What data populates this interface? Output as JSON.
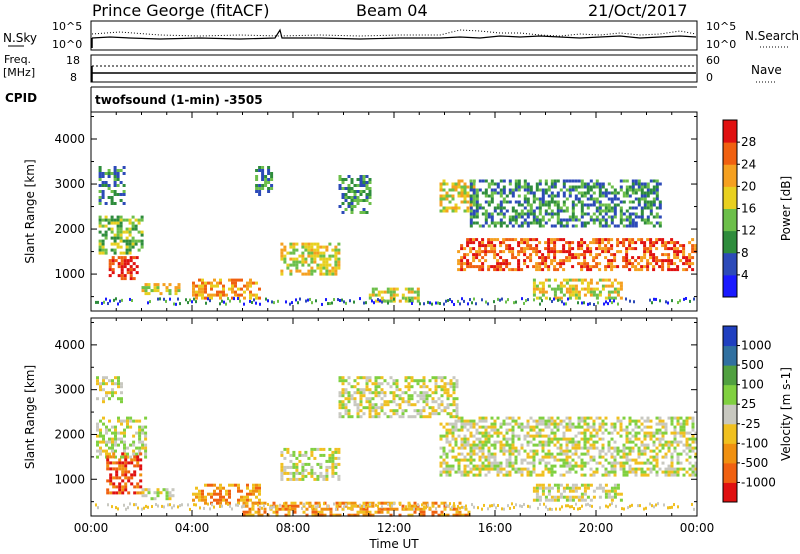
{
  "header": {
    "station": "Prince George (fitACF)",
    "beam": "Beam 04",
    "date": "21/Oct/2017"
  },
  "top_panels": {
    "nsky_label": "N.Sky",
    "nsky_ticks": [
      "10^5",
      "10^0"
    ],
    "nsearch_label": "N.Search",
    "nsearch_ticks": [
      "10^5",
      "10^0"
    ],
    "freq_label_1": "Freq.",
    "freq_label_2": "[MHz]",
    "freq_ticks": [
      "18",
      "8"
    ],
    "nave_label": "Nave",
    "nave_ticks": [
      "60",
      "0"
    ],
    "cpid_label": "CPID",
    "cpid_text": "twofsound (1-min) -3505"
  },
  "chart_data": [
    {
      "type": "heatmap",
      "title": "",
      "xlabel": "Time UT",
      "ylabel": "Slant Range [km]",
      "x_tick_labels": [
        "00:00",
        "04:00",
        "08:00",
        "12:00",
        "16:00",
        "20:00",
        "00:00"
      ],
      "y_tick_labels": [
        "1000",
        "2000",
        "3000",
        "4000"
      ],
      "xlim_hours": [
        0,
        24
      ],
      "ylim_km": [
        180,
        4600
      ],
      "colorbar_label": "Power [dB]",
      "colorbar_ticks": [
        "4",
        "8",
        "12",
        "16",
        "20",
        "24",
        "28"
      ],
      "colorbar_colors": [
        "#1a1aff",
        "#2c4ab8",
        "#2e8c3c",
        "#6cbf4a",
        "#e8d020",
        "#f5a020",
        "#f06010",
        "#e01010"
      ],
      "regions": [
        {
          "t0": 0.3,
          "t1": 2.0,
          "r0": 1500,
          "r1": 2300,
          "level": 3
        },
        {
          "t0": 0.7,
          "t1": 1.8,
          "r0": 900,
          "r1": 1400,
          "level": 7
        },
        {
          "t0": 0.3,
          "t1": 1.3,
          "r0": 2600,
          "r1": 3400,
          "level": 2
        },
        {
          "t0": 2.0,
          "t1": 3.5,
          "r0": 600,
          "r1": 800,
          "level": 4
        },
        {
          "t0": 4.0,
          "t1": 6.7,
          "r0": 500,
          "r1": 900,
          "level": 5
        },
        {
          "t0": 6.5,
          "t1": 7.2,
          "r0": 2800,
          "r1": 3400,
          "level": 2
        },
        {
          "t0": 7.5,
          "t1": 9.8,
          "r0": 1000,
          "r1": 1700,
          "level": 4
        },
        {
          "t0": 9.8,
          "t1": 11.0,
          "r0": 2400,
          "r1": 3200,
          "level": 2
        },
        {
          "t0": 11.0,
          "t1": 13.0,
          "r0": 400,
          "r1": 700,
          "level": 4
        },
        {
          "t0": 13.8,
          "t1": 15.2,
          "r0": 2400,
          "r1": 3100,
          "level": 4
        },
        {
          "t0": 14.5,
          "t1": 24.0,
          "r0": 1100,
          "r1": 1800,
          "level": 6
        },
        {
          "t0": 17.5,
          "t1": 21.0,
          "r0": 500,
          "r1": 900,
          "level": 4
        },
        {
          "t0": 15.0,
          "t1": 22.5,
          "r0": 2100,
          "r1": 3100,
          "level": 2
        }
      ]
    },
    {
      "type": "heatmap",
      "title": "",
      "xlabel": "Time UT",
      "ylabel": "Slant Range [km]",
      "x_tick_labels": [
        "00:00",
        "04:00",
        "08:00",
        "12:00",
        "16:00",
        "20:00",
        "00:00"
      ],
      "y_tick_labels": [
        "1000",
        "2000",
        "3000",
        "4000"
      ],
      "xlim_hours": [
        0,
        24
      ],
      "ylim_km": [
        180,
        4600
      ],
      "colorbar_label": "Velocity [m s-1]",
      "colorbar_ticks": [
        "1000",
        "500",
        "100",
        "25",
        "-25",
        "-100",
        "-500",
        "-1000"
      ],
      "colorbar_colors": [
        "#2040c0",
        "#3070a0",
        "#50a040",
        "#80d040",
        "#c8c8c0",
        "#f0c020",
        "#f09010",
        "#f06010",
        "#e01010"
      ],
      "regions": [
        {
          "t0": 0.2,
          "t1": 2.2,
          "r0": 1500,
          "r1": 2400,
          "level": 4
        },
        {
          "t0": 0.6,
          "t1": 2.0,
          "r0": 700,
          "r1": 1600,
          "level": 7
        },
        {
          "t0": 0.2,
          "t1": 1.2,
          "r0": 2700,
          "r1": 3300,
          "level": 4
        },
        {
          "t0": 2.0,
          "t1": 3.3,
          "r0": 550,
          "r1": 800,
          "level": 4
        },
        {
          "t0": 4.0,
          "t1": 6.7,
          "r0": 450,
          "r1": 900,
          "level": 6
        },
        {
          "t0": 7.5,
          "t1": 9.8,
          "r0": 1000,
          "r1": 1700,
          "level": 4
        },
        {
          "t0": 9.8,
          "t1": 14.5,
          "r0": 2400,
          "r1": 3300,
          "level": 4
        },
        {
          "t0": 13.8,
          "t1": 24.0,
          "r0": 1100,
          "r1": 2400,
          "level": 4
        },
        {
          "t0": 17.5,
          "t1": 21.0,
          "r0": 500,
          "r1": 900,
          "level": 4
        },
        {
          "t0": 6.0,
          "t1": 15.0,
          "r0": 200,
          "r1": 500,
          "level": 6
        }
      ]
    }
  ]
}
